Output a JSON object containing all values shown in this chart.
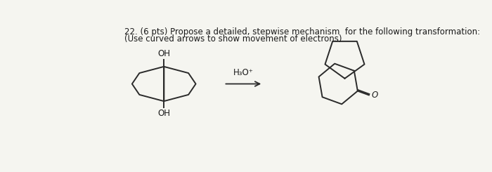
{
  "title_line1": "22. (6 pts) Propose a detailed, stepwise mechanism  for the following transformation:",
  "title_line2": "(Use curved arrows to show movement of electrons)",
  "reagent_line1": "H₃O⁺",
  "background_color": "#f5f5f0",
  "text_color": "#1a1a1a",
  "line_color": "#2a2a2a",
  "line_width": 1.4,
  "font_size_title": 8.5,
  "font_size_label": 8.5,
  "font_size_oh": 8.5
}
